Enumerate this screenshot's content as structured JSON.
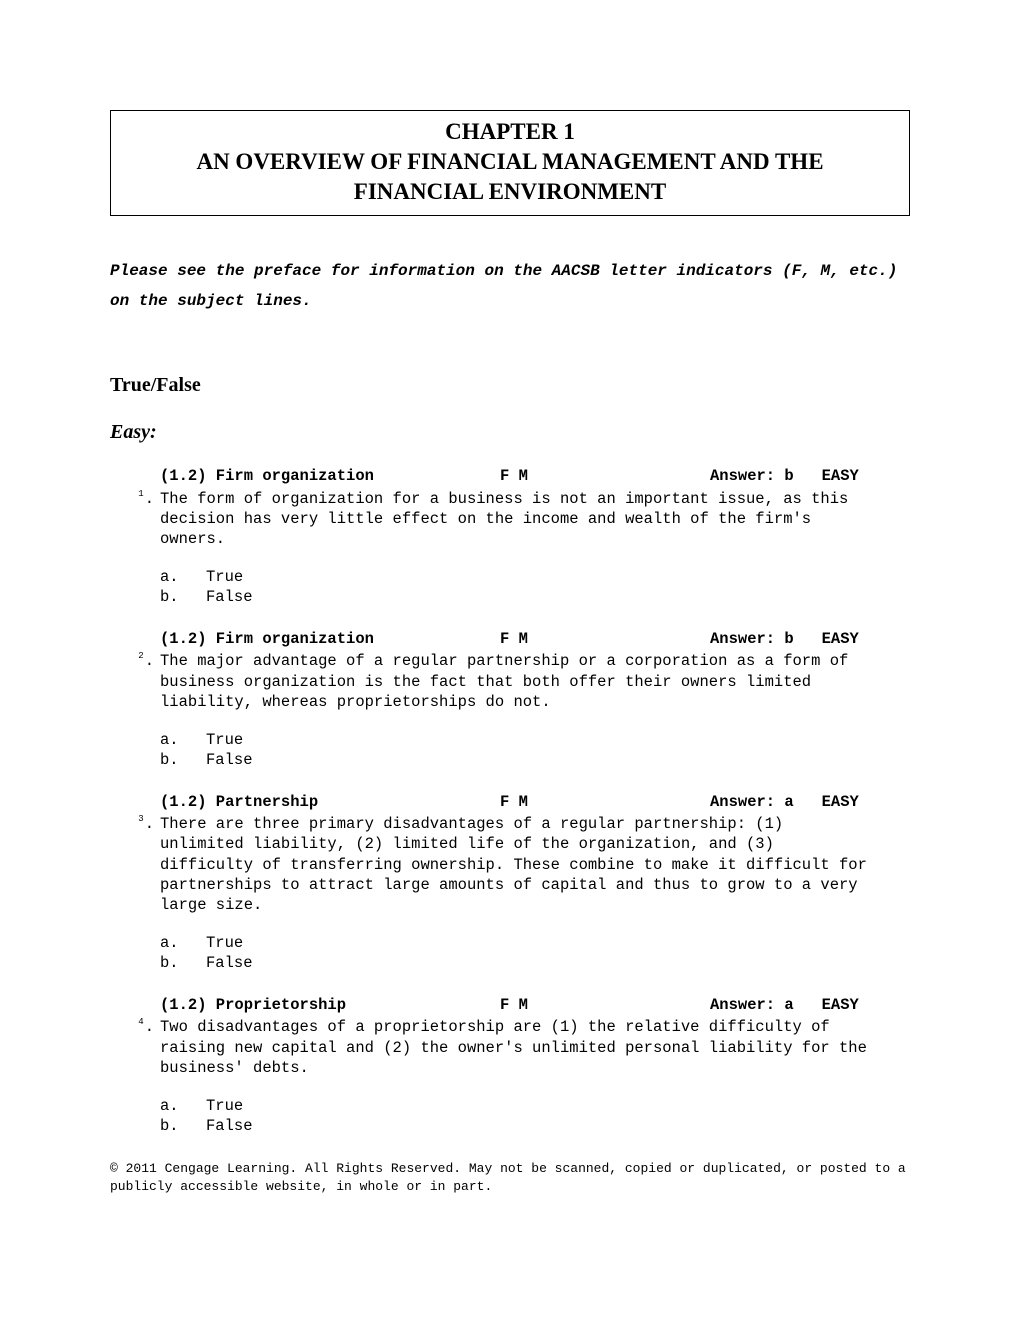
{
  "chapter": {
    "number": "CHAPTER 1",
    "title_line1": "AN OVERVIEW OF FINANCIAL MANAGEMENT AND THE",
    "title_line2": "FINANCIAL ENVIRONMENT"
  },
  "preface_note": "Please see the preface for information on the AACSB letter indicators (F, M, etc.) on the subject lines.",
  "section_heading": "True/False",
  "difficulty_heading": "Easy:",
  "questions": [
    {
      "topic": "(1.2) Firm organization",
      "code": "F M",
      "answer_label": "Answer: b",
      "difficulty": "EASY",
      "number": "1",
      "text": "The form of organization for a business is not an important issue, as this decision has very little effect on the income and wealth of the firm's owners.",
      "options": [
        {
          "letter": "a.",
          "label": "True"
        },
        {
          "letter": "b.",
          "label": "False"
        }
      ]
    },
    {
      "topic": "(1.2) Firm organization",
      "code": "F M",
      "answer_label": "Answer: b",
      "difficulty": "EASY",
      "number": "2",
      "text": "The major advantage of a regular partnership or a corporation as a form of business organization is the fact that both offer their owners limited liability, whereas proprietorships do not.",
      "options": [
        {
          "letter": "a.",
          "label": "True"
        },
        {
          "letter": "b.",
          "label": "False"
        }
      ]
    },
    {
      "topic": "(1.2) Partnership",
      "code": "F M",
      "answer_label": "Answer: a",
      "difficulty": "EASY",
      "number": "3",
      "text": "There are three primary disadvantages of a regular partnership:  (1) unlimited liability, (2) limited life of the organization, and (3) difficulty of transferring ownership.  These combine to make it difficult for partnerships to attract large amounts of capital and thus to grow to a very large size.",
      "options": [
        {
          "letter": "a.",
          "label": "True"
        },
        {
          "letter": "b.",
          "label": "False"
        }
      ]
    },
    {
      "topic": "(1.2) Proprietorship",
      "code": "F M",
      "answer_label": "Answer: a",
      "difficulty": "EASY",
      "number": "4",
      "text": "Two disadvantages of a proprietorship are (1) the relative difficulty of raising new capital and (2) the owner's unlimited personal liability for the business' debts.",
      "options": [
        {
          "letter": "a.",
          "label": "True"
        },
        {
          "letter": "b.",
          "label": "False"
        }
      ]
    }
  ],
  "footer": "© 2011 Cengage Learning. All Rights Reserved. May not be scanned, copied or duplicated, or posted to a publicly accessible website, in whole or in part."
}
